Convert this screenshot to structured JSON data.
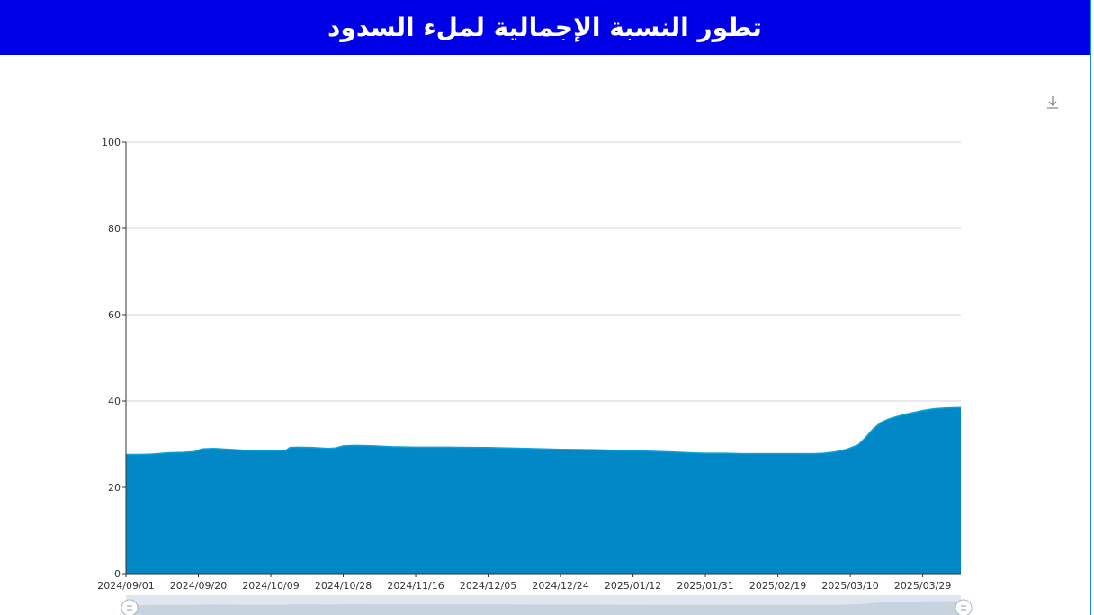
{
  "header": {
    "title": "تطور النسبة الإجمالية لملء السدود"
  },
  "toolbar": {
    "download_icon": "download-icon"
  },
  "colors": {
    "header_bg": "#0000e6",
    "area_fill": "#0288c6",
    "area_line": "#0aa0d8",
    "grid": "#d6d6d6",
    "slider_bg": "#dfe6ef"
  },
  "chart_data": {
    "type": "area",
    "xlabel": "",
    "ylabel": "",
    "ylim": [
      0,
      100
    ],
    "y_ticks": [
      "0",
      "20",
      "40",
      "60",
      "80",
      "100"
    ],
    "x_tick_labels": [
      "2024/09/01",
      "2024/09/20",
      "2024/10/09",
      "2024/10/28",
      "2024/11/16",
      "2024/12/05",
      "2024/12/24",
      "2025/01/12",
      "2025/01/31",
      "2025/02/19",
      "2025/03/10",
      "2025/03/29"
    ],
    "x_range": [
      "2024/09/01",
      "2025/04/08"
    ],
    "grid": true,
    "legend": "none",
    "series": [
      {
        "x": [
          "2024/09/01",
          "2024/09/05",
          "2024/09/08",
          "2024/09/12",
          "2024/09/16",
          "2024/09/19",
          "2024/09/21",
          "2024/09/24",
          "2024/09/28",
          "2024/10/02",
          "2024/10/06",
          "2024/10/10",
          "2024/10/13",
          "2024/10/14",
          "2024/10/16",
          "2024/10/20",
          "2024/10/24",
          "2024/10/26",
          "2024/10/28",
          "2024/10/31",
          "2024/11/05",
          "2024/11/10",
          "2024/11/16",
          "2024/11/25",
          "2024/12/05",
          "2024/12/15",
          "2024/12/24",
          "2025/01/02",
          "2025/01/12",
          "2025/01/22",
          "2025/01/27",
          "2025/01/31",
          "2025/02/05",
          "2025/02/10",
          "2025/02/19",
          "2025/02/28",
          "2025/03/03",
          "2025/03/06",
          "2025/03/09",
          "2025/03/12",
          "2025/03/14",
          "2025/03/16",
          "2025/03/18",
          "2025/03/20",
          "2025/03/23",
          "2025/03/26",
          "2025/03/29",
          "2025/04/01",
          "2025/04/04",
          "2025/04/08"
        ],
        "y": [
          27.6,
          27.6,
          27.7,
          28.0,
          28.1,
          28.3,
          28.9,
          29.0,
          28.8,
          28.6,
          28.5,
          28.5,
          28.6,
          29.2,
          29.3,
          29.2,
          29.0,
          29.1,
          29.6,
          29.7,
          29.6,
          29.4,
          29.3,
          29.3,
          29.2,
          29.0,
          28.8,
          28.7,
          28.5,
          28.2,
          28.0,
          27.9,
          27.9,
          27.8,
          27.8,
          27.8,
          27.9,
          28.2,
          28.8,
          29.8,
          31.5,
          33.5,
          35.0,
          35.8,
          36.6,
          37.2,
          37.8,
          38.2,
          38.4,
          38.5
        ]
      }
    ]
  }
}
